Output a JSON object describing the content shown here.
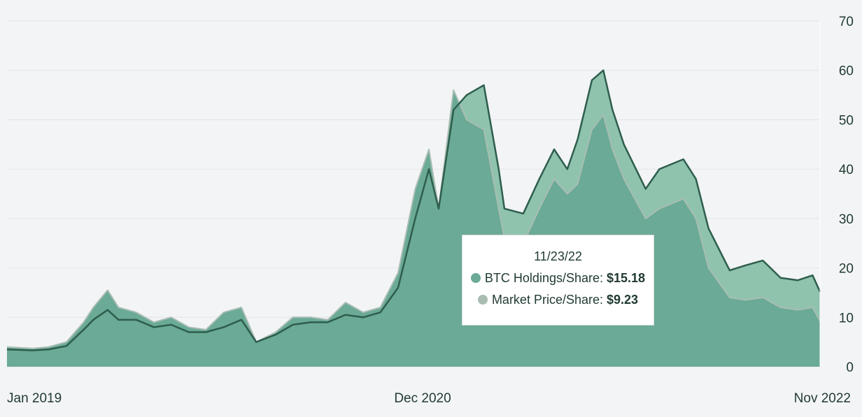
{
  "chart_data": {
    "type": "area",
    "title": "",
    "xlabel": "",
    "ylabel": "",
    "ylim": [
      0,
      70
    ],
    "yticks": [
      "0",
      "10",
      "20",
      "30",
      "40",
      "50",
      "60",
      "70"
    ],
    "xticks": [
      "Jan 2019",
      "Dec 2020",
      "Nov 2022"
    ],
    "xlim": [
      "2019-01-01",
      "2022-11-23"
    ],
    "grid": true,
    "x": [
      "2019-01-01",
      "2019-02-15",
      "2019-03-15",
      "2019-04-15",
      "2019-05-15",
      "2019-06-01",
      "2019-06-26",
      "2019-07-15",
      "2019-08-15",
      "2019-09-15",
      "2019-10-15",
      "2019-11-15",
      "2019-12-15",
      "2020-01-15",
      "2020-02-15",
      "2020-03-12",
      "2020-04-15",
      "2020-05-15",
      "2020-06-15",
      "2020-07-15",
      "2020-08-15",
      "2020-09-15",
      "2020-10-15",
      "2020-11-15",
      "2020-12-15",
      "2021-01-08",
      "2021-01-25",
      "2021-02-20",
      "2021-03-15",
      "2021-04-14",
      "2021-05-10",
      "2021-05-20",
      "2021-06-22",
      "2021-07-20",
      "2021-08-15",
      "2021-09-07",
      "2021-09-25",
      "2021-10-20",
      "2021-11-09",
      "2021-11-25",
      "2021-12-15",
      "2022-01-22",
      "2022-02-15",
      "2022-03-29",
      "2022-04-20",
      "2022-05-12",
      "2022-06-18",
      "2022-07-15",
      "2022-08-15",
      "2022-09-15",
      "2022-10-15",
      "2022-11-10",
      "2022-11-23"
    ],
    "series": [
      {
        "name": "BTC Holdings/Share",
        "color": "#2e5e4d",
        "fill": "#8fc3ae",
        "values": [
          3.5,
          3.3,
          3.5,
          4.2,
          7.5,
          9.5,
          11.5,
          9.5,
          9.5,
          8.0,
          8.5,
          7.0,
          7.0,
          8.0,
          9.5,
          5.0,
          6.5,
          8.5,
          9.0,
          9.0,
          10.5,
          10.0,
          11.0,
          16.0,
          30.0,
          40.0,
          32.0,
          52.0,
          55.0,
          57.0,
          40.0,
          32.0,
          31.0,
          38.0,
          44.0,
          40.0,
          46.0,
          58.0,
          60.0,
          52.0,
          45.0,
          36.0,
          40.0,
          42.0,
          38.0,
          28.0,
          19.5,
          20.5,
          21.5,
          18.0,
          17.5,
          18.5,
          15.18
        ]
      },
      {
        "name": "Market Price/Share",
        "color": "#a9bdb3",
        "fill": "#6aaa96",
        "values": [
          4.0,
          3.7,
          4.0,
          5.0,
          9.0,
          12.0,
          15.5,
          12.0,
          11.0,
          9.0,
          10.0,
          8.0,
          7.5,
          11.0,
          12.0,
          5.0,
          7.0,
          10.0,
          10.0,
          9.5,
          13.0,
          11.0,
          12.0,
          19.0,
          36.0,
          44.0,
          32.0,
          56.0,
          50.0,
          48.0,
          32.0,
          26.0,
          25.0,
          32.0,
          38.0,
          35.0,
          37.0,
          48.0,
          51.0,
          44.0,
          38.0,
          30.0,
          32.0,
          34.0,
          30.0,
          20.0,
          14.0,
          13.5,
          14.0,
          12.0,
          11.5,
          12.0,
          9.23
        ]
      }
    ]
  },
  "tooltip": {
    "date": "11/23/22",
    "rows": [
      {
        "label": "BTC Holdings/Share:",
        "value": "$15.18",
        "color": "#6aaa96"
      },
      {
        "label": "Market Price/Share:",
        "value": "$9.23",
        "color": "#a9bdb3"
      }
    ]
  }
}
